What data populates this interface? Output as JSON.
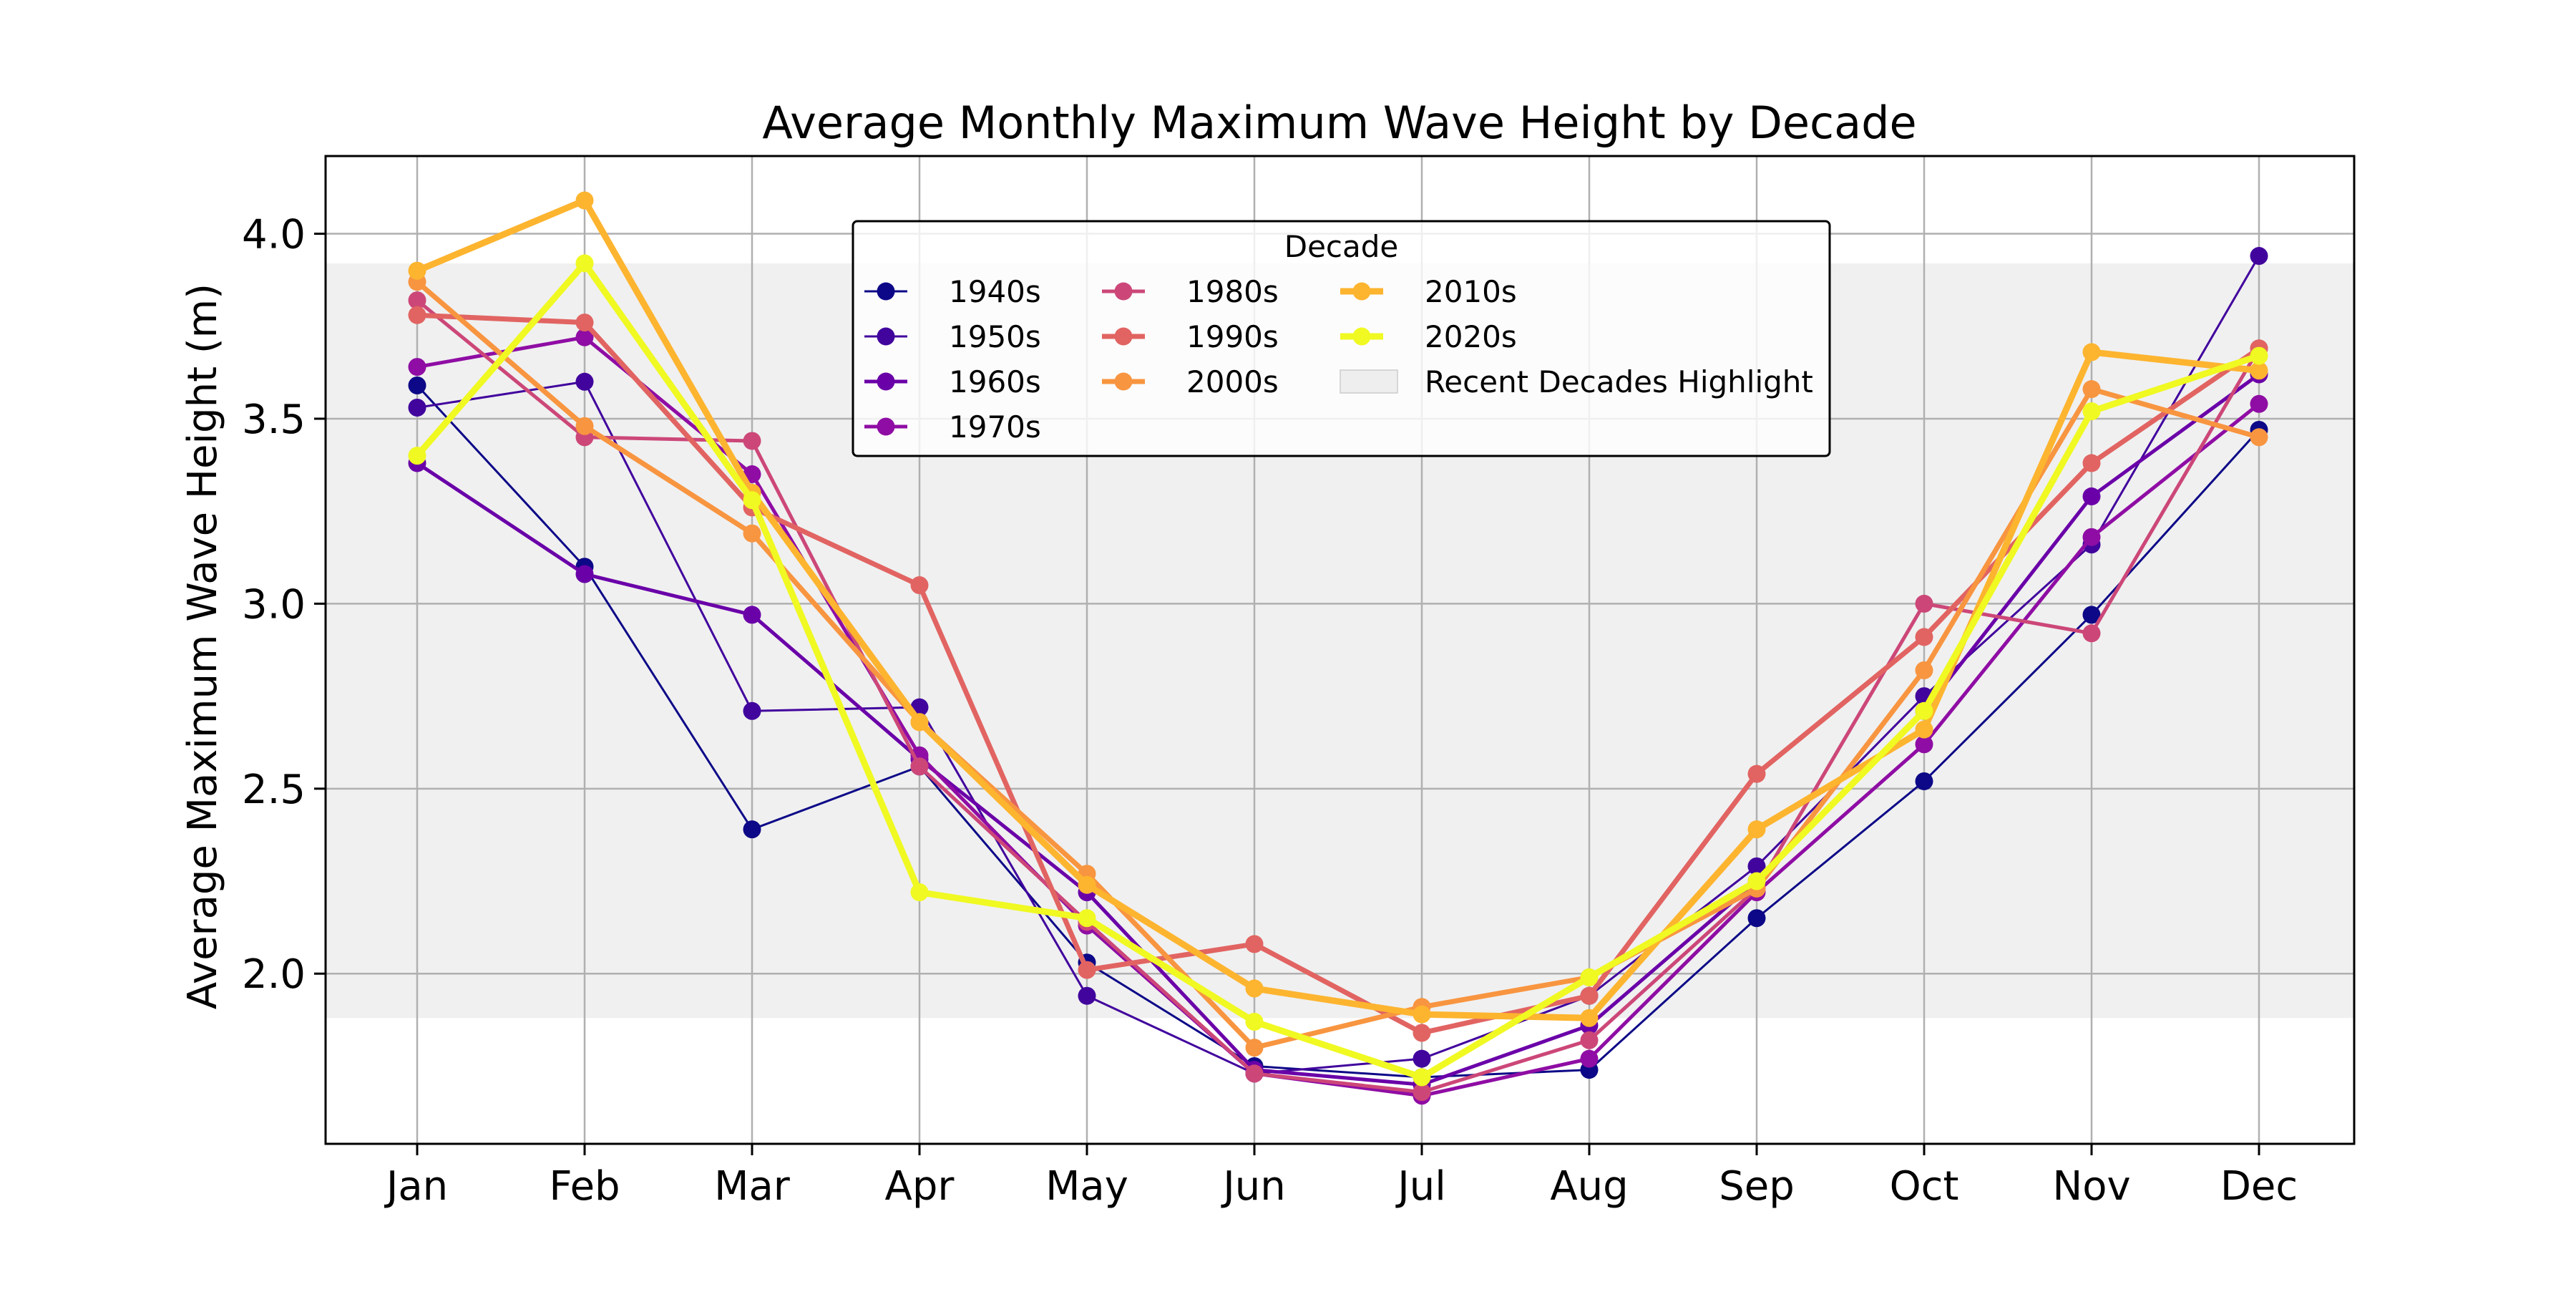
{
  "chart_data": {
    "type": "line",
    "title": "Average Monthly Maximum Wave Height by Decade",
    "xlabel": "",
    "ylabel": "Average Maximum Wave Height (m)",
    "categories": [
      "Jan",
      "Feb",
      "Mar",
      "Apr",
      "May",
      "Jun",
      "Jul",
      "Aug",
      "Sep",
      "Oct",
      "Nov",
      "Dec"
    ],
    "ylim": [
      1.54,
      4.21
    ],
    "yticks": [
      "2.0",
      "2.5",
      "3.0",
      "3.5",
      "4.0"
    ],
    "grid": true,
    "legend": {
      "title": "Decade",
      "placement": "upper-center",
      "highlight_label": "Recent Decades Highlight"
    },
    "highlight_band": {
      "y_from": 1.88,
      "y_to": 3.92,
      "color": "#d9d9d9"
    },
    "series": [
      {
        "name": "1940s",
        "color": "#0d0887",
        "width": "thin",
        "values": [
          3.59,
          3.1,
          2.39,
          2.56,
          2.03,
          1.75,
          1.72,
          1.74,
          2.15,
          2.52,
          2.97,
          3.47
        ]
      },
      {
        "name": "1950s",
        "color": "#41049d",
        "width": "thin",
        "values": [
          3.53,
          3.6,
          2.71,
          2.72,
          1.94,
          1.73,
          1.77,
          1.94,
          2.29,
          2.75,
          3.16,
          3.94
        ]
      },
      {
        "name": "1960s",
        "color": "#6a00a8",
        "width": "medium",
        "values": [
          3.38,
          3.08,
          2.97,
          2.58,
          2.22,
          1.74,
          1.7,
          1.86,
          2.25,
          2.71,
          3.29,
          3.62
        ]
      },
      {
        "name": "1970s",
        "color": "#8f0da4",
        "width": "medium",
        "values": [
          3.64,
          3.72,
          3.35,
          2.59,
          2.13,
          1.73,
          1.67,
          1.77,
          2.22,
          2.62,
          3.18,
          3.54
        ]
      },
      {
        "name": "1980s",
        "color": "#cc4778",
        "width": "medium",
        "values": [
          3.82,
          3.45,
          3.44,
          2.56,
          2.14,
          1.73,
          1.68,
          1.82,
          2.23,
          3.0,
          2.92,
          3.69
        ]
      },
      {
        "name": "1990s",
        "color": "#e16462",
        "width": "thick",
        "values": [
          3.78,
          3.76,
          3.26,
          3.05,
          2.01,
          2.08,
          1.84,
          1.94,
          2.54,
          2.91,
          3.38,
          3.69
        ]
      },
      {
        "name": "2000s",
        "color": "#f89540",
        "width": "thick",
        "values": [
          3.87,
          3.48,
          3.19,
          2.68,
          2.27,
          1.8,
          1.91,
          1.99,
          2.23,
          2.82,
          3.58,
          3.45
        ]
      },
      {
        "name": "2010s",
        "color": "#fdb42f",
        "width": "thicker",
        "values": [
          3.9,
          4.09,
          3.3,
          2.68,
          2.24,
          1.96,
          1.89,
          1.88,
          2.39,
          2.66,
          3.68,
          3.63
        ]
      },
      {
        "name": "2020s",
        "color": "#f0f921",
        "width": "thicker",
        "values": [
          3.4,
          3.92,
          3.28,
          2.22,
          2.15,
          1.87,
          1.72,
          1.99,
          2.25,
          2.71,
          3.52,
          3.67
        ]
      }
    ]
  }
}
